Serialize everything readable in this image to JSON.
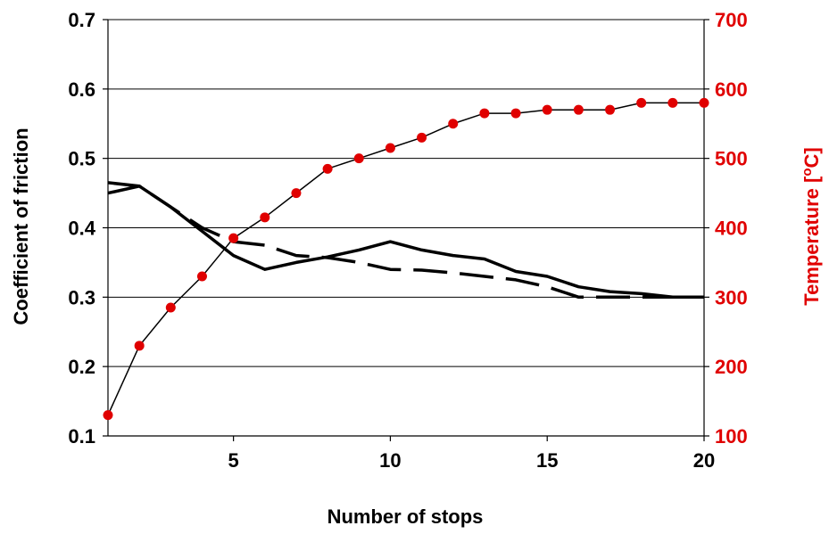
{
  "chart_data": {
    "type": "line",
    "xlabel": "Number of stops",
    "ylabel_left": "Coefficient of friction",
    "ylabel_right": {
      "prefix": "Temperature [",
      "superscript": "o",
      "suffix": "C]"
    },
    "xlim": [
      1,
      20
    ],
    "ylim_left": [
      0.1,
      0.7
    ],
    "ylim_right": [
      100,
      700
    ],
    "x_ticks": [
      "5",
      "10",
      "15",
      "20"
    ],
    "y_ticks_left": [
      "0.1",
      "0.2",
      "0.3",
      "0.4",
      "0.5",
      "0.6",
      "0.7"
    ],
    "y_ticks_right": [
      "100",
      "200",
      "300",
      "400",
      "500",
      "600",
      "700"
    ],
    "grid": "horizontal",
    "colors": {
      "friction": "#000000",
      "temperature_marker": "#e00000",
      "temperature_line": "#000000",
      "right_axis_text": "#e00000"
    },
    "series": [
      {
        "axis": "left",
        "style": "solid",
        "x": [
          1,
          2,
          3,
          4,
          5,
          6,
          7,
          8,
          9,
          10,
          11,
          12,
          13,
          14,
          15,
          16,
          17,
          18,
          19,
          20
        ],
        "y": [
          0.465,
          0.46,
          0.43,
          0.395,
          0.36,
          0.34,
          0.35,
          0.358,
          0.368,
          0.38,
          0.368,
          0.36,
          0.355,
          0.337,
          0.33,
          0.315,
          0.308,
          0.305,
          0.3,
          0.3
        ]
      },
      {
        "axis": "left",
        "style": "dashed",
        "x": [
          1,
          2,
          3,
          4,
          5,
          6,
          7,
          8,
          9,
          10,
          11,
          12,
          13,
          14,
          15,
          16,
          17,
          18,
          19,
          20
        ],
        "y": [
          0.45,
          0.46,
          0.43,
          0.4,
          0.38,
          0.375,
          0.36,
          0.357,
          0.35,
          0.34,
          0.339,
          0.335,
          0.33,
          0.325,
          0.315,
          0.3,
          0.3,
          0.3,
          0.3,
          0.3
        ]
      },
      {
        "axis": "right",
        "style": "markers",
        "x": [
          1,
          2,
          3,
          4,
          5,
          6,
          7,
          8,
          9,
          10,
          11,
          12,
          13,
          14,
          15,
          16,
          17,
          18,
          19,
          20
        ],
        "y": [
          130,
          230,
          285,
          330,
          385,
          415,
          450,
          485,
          500,
          515,
          530,
          550,
          565,
          565,
          570,
          570,
          570,
          580,
          580,
          580
        ]
      }
    ]
  }
}
